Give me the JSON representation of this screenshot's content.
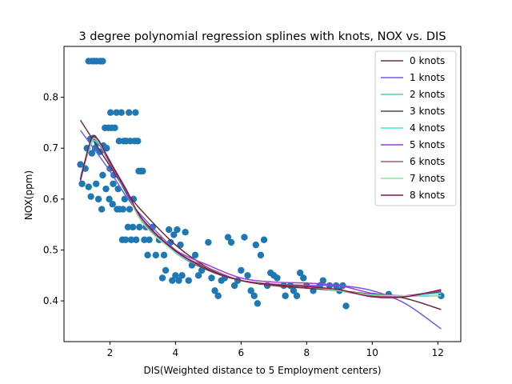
{
  "chart_data": {
    "type": "scatter",
    "title": "3 degree polynomial regression splines with knots, NOX vs. DIS",
    "xlabel": "DIS(Weighted distance to 5 Employment centers)",
    "ylabel": "NOX(ppm)",
    "xlim": [
      0.6,
      12.7
    ],
    "ylim": [
      0.32,
      0.9
    ],
    "xticks": [
      2,
      4,
      6,
      8,
      10,
      12
    ],
    "yticks": [
      0.4,
      0.5,
      0.6,
      0.7,
      0.8
    ],
    "xtick_labels": [
      "2",
      "4",
      "6",
      "8",
      "10",
      "12"
    ],
    "ytick_labels": [
      "0.4",
      "0.5",
      "0.6",
      "0.7",
      "0.8"
    ],
    "grid": false,
    "legend_position": "top-right",
    "point_color": "#1f77b4",
    "points": [
      [
        1.35,
        0.871
      ],
      [
        1.45,
        0.871
      ],
      [
        1.52,
        0.871
      ],
      [
        1.6,
        0.871
      ],
      [
        1.7,
        0.871
      ],
      [
        1.78,
        0.871
      ],
      [
        1.1,
        0.668
      ],
      [
        1.15,
        0.63
      ],
      [
        1.25,
        0.66
      ],
      [
        1.3,
        0.7
      ],
      [
        1.35,
        0.624
      ],
      [
        1.4,
        0.718
      ],
      [
        1.42,
        0.605
      ],
      [
        1.45,
        0.69
      ],
      [
        1.5,
        0.72
      ],
      [
        1.55,
        0.7
      ],
      [
        1.58,
        0.63
      ],
      [
        1.62,
        0.71
      ],
      [
        1.65,
        0.6
      ],
      [
        1.7,
        0.693
      ],
      [
        1.75,
        0.58
      ],
      [
        1.78,
        0.647
      ],
      [
        1.8,
        0.705
      ],
      [
        1.85,
        0.74
      ],
      [
        1.88,
        0.62
      ],
      [
        1.9,
        0.7
      ],
      [
        1.95,
        0.74
      ],
      [
        1.98,
        0.6
      ],
      [
        2.0,
        0.66
      ],
      [
        2.02,
        0.77
      ],
      [
        2.05,
        0.74
      ],
      [
        2.08,
        0.59
      ],
      [
        2.1,
        0.63
      ],
      [
        2.12,
        0.647
      ],
      [
        2.15,
        0.74
      ],
      [
        2.2,
        0.77
      ],
      [
        2.22,
        0.58
      ],
      [
        2.25,
        0.62
      ],
      [
        2.28,
        0.714
      ],
      [
        2.3,
        0.58
      ],
      [
        2.35,
        0.77
      ],
      [
        2.38,
        0.52
      ],
      [
        2.4,
        0.58
      ],
      [
        2.42,
        0.714
      ],
      [
        2.45,
        0.6
      ],
      [
        2.48,
        0.52
      ],
      [
        2.5,
        0.714
      ],
      [
        2.55,
        0.545
      ],
      [
        2.58,
        0.77
      ],
      [
        2.6,
        0.58
      ],
      [
        2.62,
        0.714
      ],
      [
        2.65,
        0.52
      ],
      [
        2.7,
        0.545
      ],
      [
        2.72,
        0.6
      ],
      [
        2.75,
        0.714
      ],
      [
        2.78,
        0.77
      ],
      [
        2.8,
        0.52
      ],
      [
        2.85,
        0.714
      ],
      [
        2.88,
        0.655
      ],
      [
        2.9,
        0.545
      ],
      [
        2.95,
        0.655
      ],
      [
        3.0,
        0.655
      ],
      [
        3.05,
        0.52
      ],
      [
        3.1,
        0.545
      ],
      [
        3.15,
        0.49
      ],
      [
        3.2,
        0.52
      ],
      [
        3.3,
        0.545
      ],
      [
        3.4,
        0.49
      ],
      [
        3.5,
        0.52
      ],
      [
        3.6,
        0.445
      ],
      [
        3.65,
        0.49
      ],
      [
        3.7,
        0.46
      ],
      [
        3.8,
        0.54
      ],
      [
        3.85,
        0.515
      ],
      [
        3.9,
        0.44
      ],
      [
        3.95,
        0.53
      ],
      [
        4.0,
        0.45
      ],
      [
        4.05,
        0.54
      ],
      [
        4.1,
        0.44
      ],
      [
        4.15,
        0.51
      ],
      [
        4.2,
        0.45
      ],
      [
        4.3,
        0.535
      ],
      [
        4.4,
        0.44
      ],
      [
        4.5,
        0.47
      ],
      [
        4.6,
        0.49
      ],
      [
        4.7,
        0.45
      ],
      [
        4.8,
        0.46
      ],
      [
        5.0,
        0.515
      ],
      [
        5.1,
        0.445
      ],
      [
        5.2,
        0.42
      ],
      [
        5.3,
        0.41
      ],
      [
        5.4,
        0.44
      ],
      [
        5.5,
        0.445
      ],
      [
        5.6,
        0.525
      ],
      [
        5.7,
        0.515
      ],
      [
        5.8,
        0.43
      ],
      [
        5.9,
        0.44
      ],
      [
        6.0,
        0.46
      ],
      [
        6.1,
        0.525
      ],
      [
        6.2,
        0.45
      ],
      [
        6.3,
        0.42
      ],
      [
        6.4,
        0.41
      ],
      [
        6.45,
        0.51
      ],
      [
        6.5,
        0.395
      ],
      [
        6.6,
        0.49
      ],
      [
        6.7,
        0.52
      ],
      [
        6.8,
        0.43
      ],
      [
        6.9,
        0.455
      ],
      [
        7.0,
        0.45
      ],
      [
        7.1,
        0.445
      ],
      [
        7.3,
        0.43
      ],
      [
        7.35,
        0.41
      ],
      [
        7.5,
        0.43
      ],
      [
        7.6,
        0.42
      ],
      [
        7.7,
        0.41
      ],
      [
        7.8,
        0.455
      ],
      [
        7.9,
        0.445
      ],
      [
        8.0,
        0.43
      ],
      [
        8.2,
        0.42
      ],
      [
        8.4,
        0.43
      ],
      [
        8.5,
        0.44
      ],
      [
        8.7,
        0.43
      ],
      [
        8.9,
        0.43
      ],
      [
        9.0,
        0.42
      ],
      [
        9.1,
        0.43
      ],
      [
        9.2,
        0.39
      ],
      [
        10.5,
        0.413
      ],
      [
        12.1,
        0.41
      ]
    ],
    "series": [
      {
        "name": "0 knots",
        "color": "#6d2f3a",
        "points": [
          [
            1.1,
            0.755
          ],
          [
            1.5,
            0.715
          ],
          [
            2,
            0.665
          ],
          [
            2.5,
            0.615
          ],
          [
            3,
            0.575
          ],
          [
            4,
            0.51
          ],
          [
            5,
            0.465
          ],
          [
            6,
            0.44
          ],
          [
            7,
            0.43
          ],
          [
            8,
            0.425
          ],
          [
            9,
            0.42
          ],
          [
            10,
            0.413
          ],
          [
            11,
            0.405
          ],
          [
            12.1,
            0.383
          ]
        ]
      },
      {
        "name": "1 knots",
        "color": "#6a5cf0",
        "points": [
          [
            1.1,
            0.735
          ],
          [
            1.5,
            0.7
          ],
          [
            2,
            0.655
          ],
          [
            2.5,
            0.605
          ],
          [
            3,
            0.565
          ],
          [
            4,
            0.5
          ],
          [
            5,
            0.46
          ],
          [
            6,
            0.44
          ],
          [
            7,
            0.432
          ],
          [
            8,
            0.43
          ],
          [
            9,
            0.43
          ],
          [
            10,
            0.42
          ],
          [
            11,
            0.395
          ],
          [
            12.1,
            0.345
          ]
        ]
      },
      {
        "name": "2 knots",
        "color": "#5fc9c6",
        "points": [
          [
            1.1,
            0.64
          ],
          [
            1.4,
            0.705
          ],
          [
            1.6,
            0.715
          ],
          [
            2,
            0.675
          ],
          [
            2.5,
            0.61
          ],
          [
            3,
            0.56
          ],
          [
            4,
            0.495
          ],
          [
            5,
            0.46
          ],
          [
            6,
            0.44
          ],
          [
            7,
            0.432
          ],
          [
            8,
            0.428
          ],
          [
            9,
            0.42
          ],
          [
            10,
            0.41
          ],
          [
            11,
            0.41
          ],
          [
            12.1,
            0.42
          ]
        ]
      },
      {
        "name": "3 knots",
        "color": "#4a4a4a",
        "points": [
          [
            1.1,
            0.64
          ],
          [
            1.4,
            0.705
          ],
          [
            1.6,
            0.715
          ],
          [
            2,
            0.675
          ],
          [
            2.5,
            0.612
          ],
          [
            3,
            0.56
          ],
          [
            4,
            0.495
          ],
          [
            5,
            0.46
          ],
          [
            6,
            0.44
          ],
          [
            7,
            0.432
          ],
          [
            8,
            0.428
          ],
          [
            9,
            0.42
          ],
          [
            10,
            0.41
          ],
          [
            11,
            0.41
          ],
          [
            12.1,
            0.418
          ]
        ]
      },
      {
        "name": "4 knots",
        "color": "#3fe6ea",
        "points": [
          [
            1.1,
            0.645
          ],
          [
            1.4,
            0.705
          ],
          [
            1.6,
            0.712
          ],
          [
            2,
            0.672
          ],
          [
            2.5,
            0.615
          ],
          [
            3,
            0.56
          ],
          [
            4,
            0.495
          ],
          [
            5,
            0.462
          ],
          [
            6,
            0.44
          ],
          [
            7,
            0.432
          ],
          [
            8,
            0.428
          ],
          [
            9,
            0.42
          ],
          [
            10,
            0.41
          ],
          [
            11,
            0.41
          ],
          [
            12.1,
            0.415
          ]
        ]
      },
      {
        "name": "5 knots",
        "color": "#9b3fd6",
        "points": [
          [
            1.1,
            0.64
          ],
          [
            1.4,
            0.71
          ],
          [
            1.6,
            0.715
          ],
          [
            2,
            0.67
          ],
          [
            2.5,
            0.615
          ],
          [
            3,
            0.555
          ],
          [
            4,
            0.5
          ],
          [
            5,
            0.47
          ],
          [
            6,
            0.445
          ],
          [
            7,
            0.437
          ],
          [
            8,
            0.435
          ],
          [
            9,
            0.43
          ],
          [
            10,
            0.415
          ],
          [
            11,
            0.41
          ],
          [
            12.1,
            0.41
          ]
        ]
      },
      {
        "name": "6 knots",
        "color": "#a35a7e",
        "points": [
          [
            1.1,
            0.635
          ],
          [
            1.4,
            0.71
          ],
          [
            1.6,
            0.718
          ],
          [
            2,
            0.672
          ],
          [
            2.5,
            0.618
          ],
          [
            3,
            0.555
          ],
          [
            4,
            0.497
          ],
          [
            5,
            0.465
          ],
          [
            6,
            0.44
          ],
          [
            7,
            0.433
          ],
          [
            8,
            0.43
          ],
          [
            9,
            0.42
          ],
          [
            10,
            0.41
          ],
          [
            11,
            0.41
          ],
          [
            12.1,
            0.42
          ]
        ]
      },
      {
        "name": "7 knots",
        "color": "#7fec9a",
        "points": [
          [
            1.1,
            0.64
          ],
          [
            1.4,
            0.708
          ],
          [
            1.6,
            0.716
          ],
          [
            2,
            0.674
          ],
          [
            2.5,
            0.62
          ],
          [
            3,
            0.553
          ],
          [
            4,
            0.496
          ],
          [
            5,
            0.462
          ],
          [
            6,
            0.44
          ],
          [
            7,
            0.432
          ],
          [
            8,
            0.428
          ],
          [
            9,
            0.42
          ],
          [
            10,
            0.412
          ],
          [
            11,
            0.41
          ],
          [
            12.1,
            0.41
          ]
        ]
      },
      {
        "name": "8 knots",
        "color": "#8b1050",
        "points": [
          [
            1.1,
            0.638
          ],
          [
            1.4,
            0.712
          ],
          [
            1.6,
            0.72
          ],
          [
            2,
            0.674
          ],
          [
            2.5,
            0.618
          ],
          [
            3,
            0.56
          ],
          [
            4,
            0.498
          ],
          [
            5,
            0.462
          ],
          [
            6,
            0.44
          ],
          [
            7,
            0.432
          ],
          [
            8,
            0.428
          ],
          [
            9,
            0.422
          ],
          [
            10,
            0.408
          ],
          [
            11,
            0.408
          ],
          [
            12.1,
            0.422
          ]
        ]
      }
    ]
  }
}
